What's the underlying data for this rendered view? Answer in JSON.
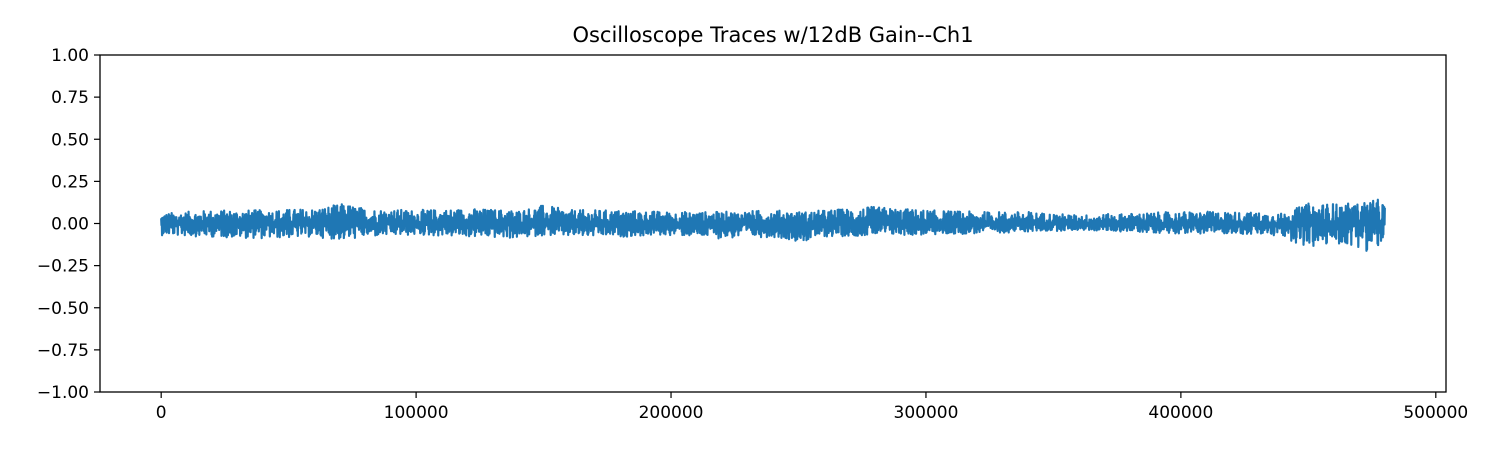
{
  "chart_data": {
    "type": "line",
    "title": "Oscilloscope Traces w/12dB Gain--Ch1",
    "xlabel": "",
    "ylabel": "",
    "xlim": [
      -24000,
      504000
    ],
    "ylim": [
      -1.0,
      1.0
    ],
    "x_ticks": [
      0,
      100000,
      200000,
      300000,
      400000,
      500000
    ],
    "x_tick_labels": [
      "0",
      "100000",
      "200000",
      "300000",
      "400000",
      "500000"
    ],
    "y_ticks": [
      1.0,
      0.75,
      0.5,
      0.25,
      0.0,
      -0.25,
      -0.5,
      -0.75,
      -1.0
    ],
    "y_tick_labels": [
      "1.00",
      "0.75",
      "0.50",
      "0.25",
      "0.00",
      "−0.25",
      "−0.50",
      "−0.75",
      "−1.00"
    ],
    "grid": false,
    "legend": "none",
    "line_color": "#1f77b4",
    "series": [
      {
        "x": [
          0,
          480000
        ],
        "envelope_x": [
          0,
          20000,
          40000,
          60000,
          72000,
          80000,
          100000,
          120000,
          140000,
          150000,
          160000,
          180000,
          200000,
          220000,
          240000,
          252000,
          260000,
          280000,
          300000,
          320000,
          340000,
          360000,
          380000,
          400000,
          420000,
          440000,
          450000,
          460000,
          470000,
          475000,
          480000
        ],
        "envelope_max": [
          0.06,
          0.08,
          0.08,
          0.09,
          0.12,
          0.09,
          0.08,
          0.09,
          0.08,
          0.11,
          0.08,
          0.08,
          0.07,
          0.07,
          0.08,
          0.07,
          0.08,
          0.1,
          0.08,
          0.07,
          0.07,
          0.05,
          0.06,
          0.07,
          0.07,
          0.06,
          0.12,
          0.12,
          0.12,
          0.15,
          0.13
        ],
        "envelope_min": [
          -0.07,
          -0.08,
          -0.09,
          -0.08,
          -0.1,
          -0.08,
          -0.07,
          -0.08,
          -0.09,
          -0.07,
          -0.08,
          -0.08,
          -0.07,
          -0.09,
          -0.08,
          -0.11,
          -0.08,
          -0.07,
          -0.07,
          -0.06,
          -0.05,
          -0.04,
          -0.05,
          -0.06,
          -0.06,
          -0.08,
          -0.15,
          -0.12,
          -0.14,
          -0.18,
          -0.1
        ]
      }
    ]
  }
}
